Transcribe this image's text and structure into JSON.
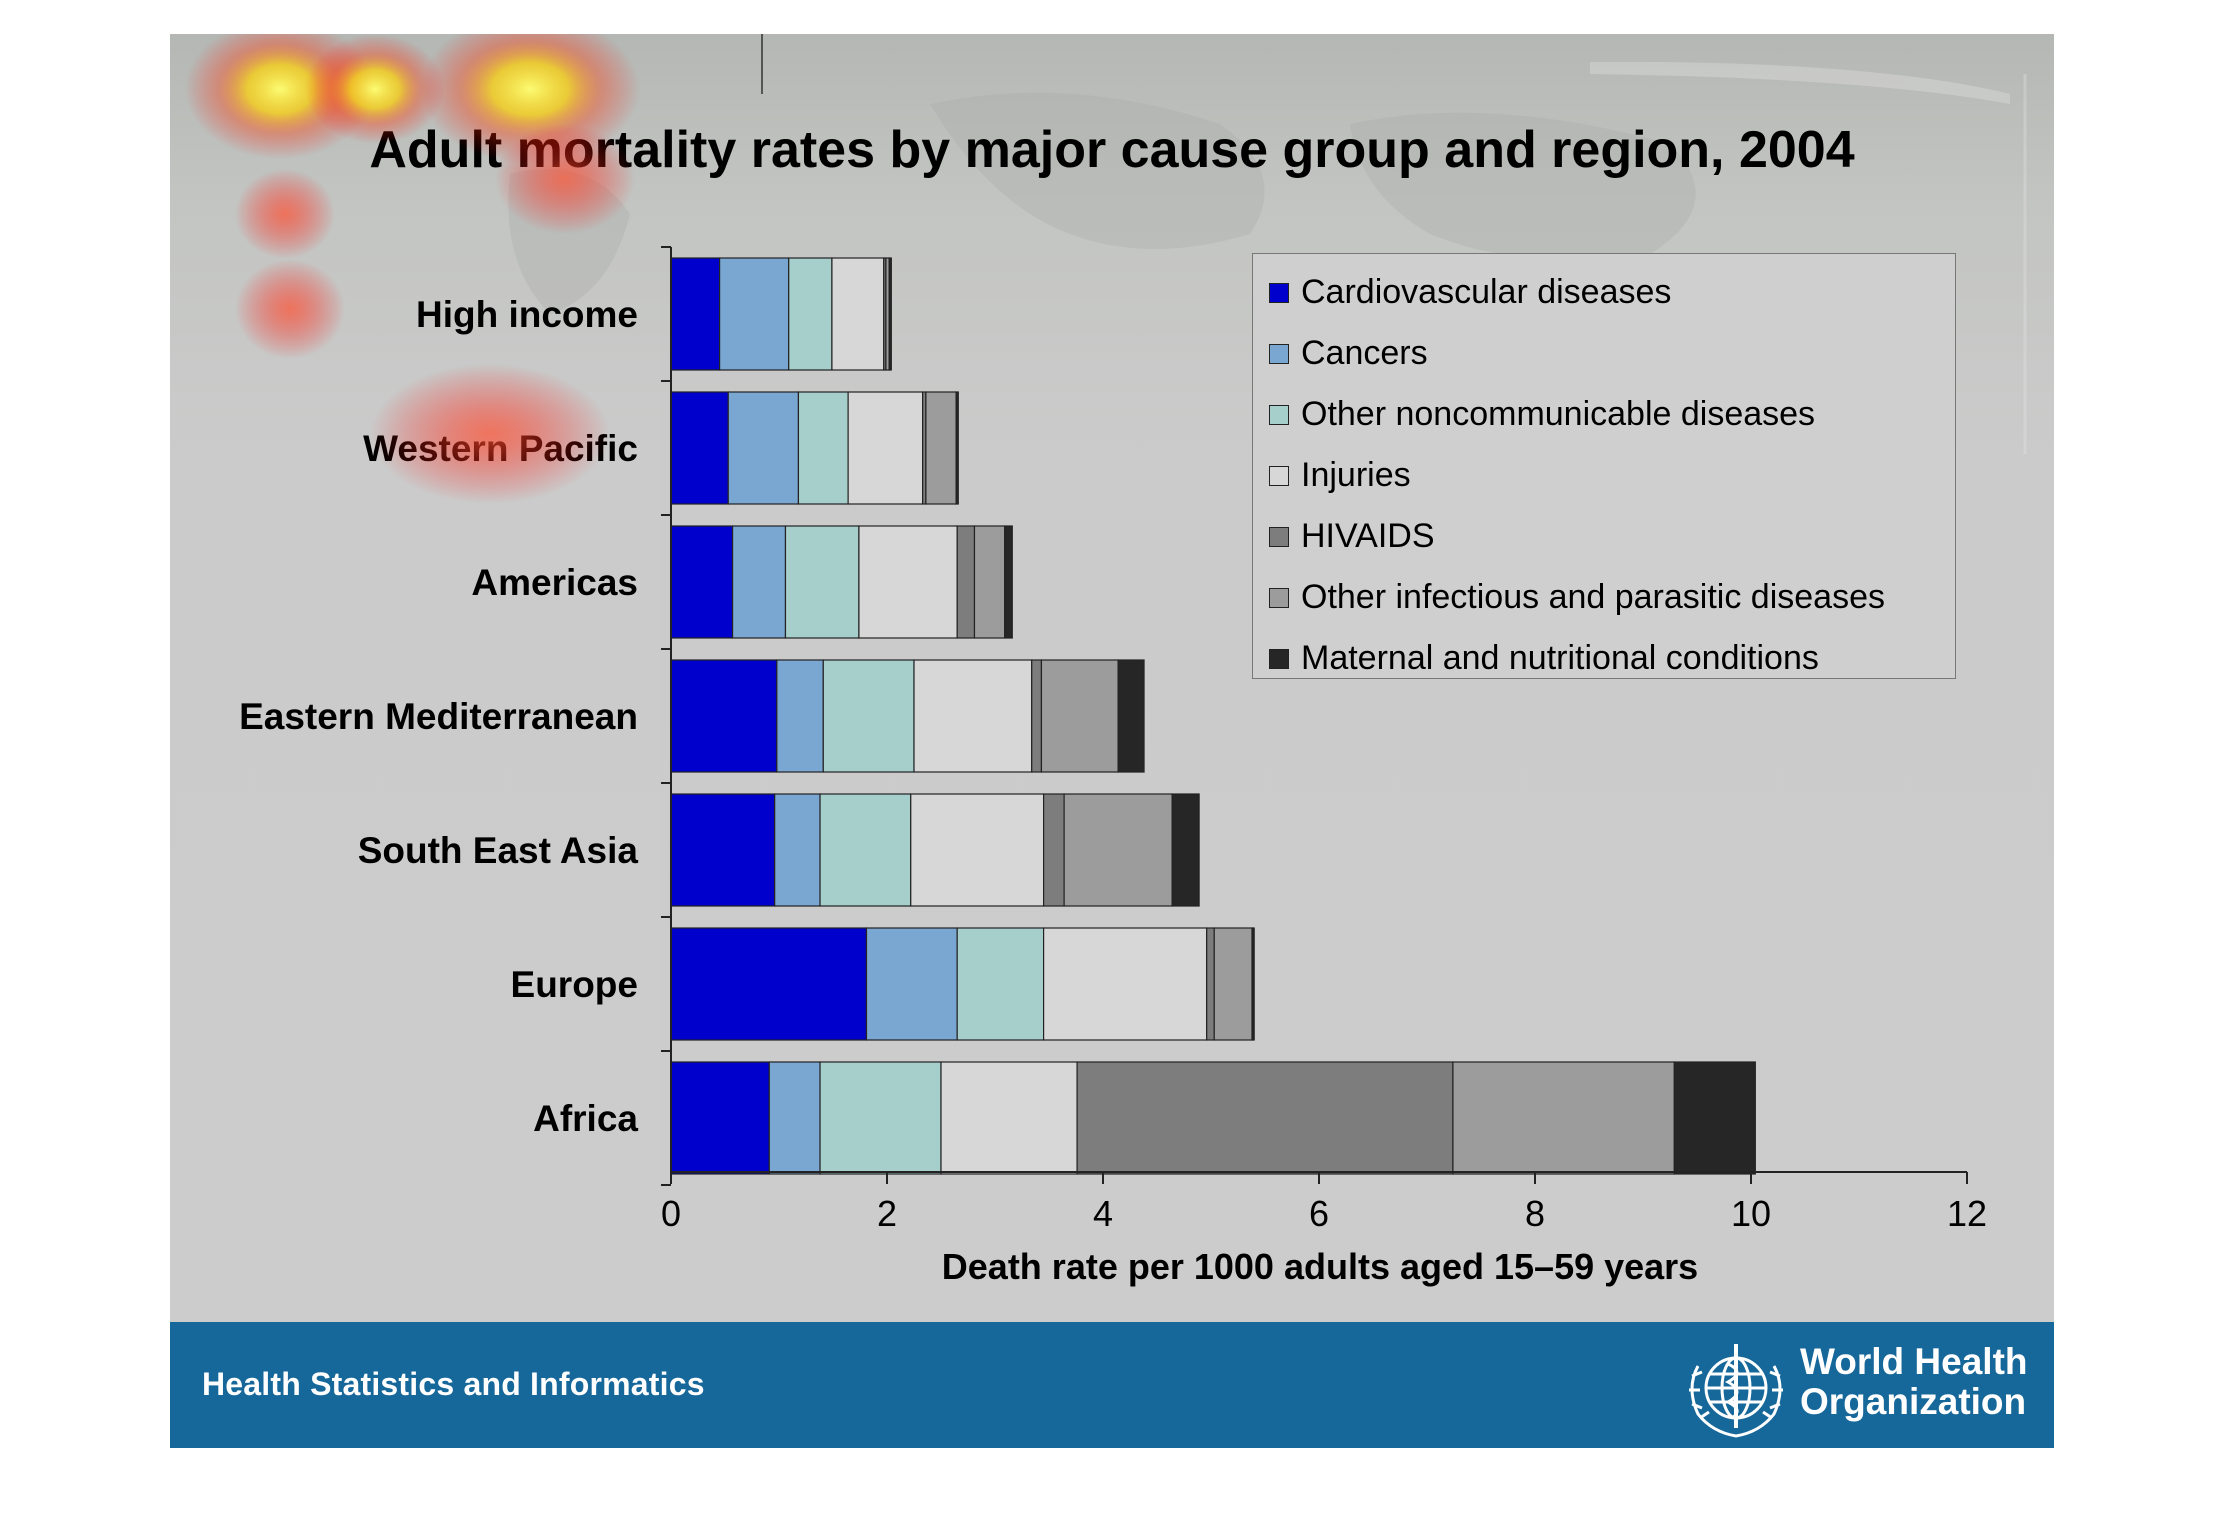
{
  "slide": {
    "footer_text": "Health Statistics and Informatics",
    "who_name_line1": "World Health",
    "who_name_line2": "Organization"
  },
  "colors": {
    "footer": "#17689a",
    "cardiovascular": "#0000cc",
    "cancers": "#7aa6d2",
    "other_ncd": "#a6cfcc",
    "injuries": "#d7d7d7",
    "hivaids": "#7d7d7d",
    "other_infectious": "#9c9c9c",
    "maternal": "#262626"
  },
  "chart_data": {
    "type": "bar",
    "orientation": "horizontal",
    "stacked": true,
    "title": "Adult mortality rates by major cause group and region, 2004",
    "xlabel": "Death rate per 1000 adults aged 15–59 years",
    "ylabel": "",
    "xlim": [
      0,
      12
    ],
    "xticks": [
      0,
      2,
      4,
      6,
      8,
      10,
      12
    ],
    "grid": false,
    "legend_position": "top-right",
    "categories": [
      "High income",
      "Western Pacific",
      "Americas",
      "Eastern Mediterranean",
      "South East Asia",
      "Europe",
      "Africa"
    ],
    "series": [
      {
        "name": "Cardiovascular diseases",
        "color": "#0000cc",
        "values": [
          0.45,
          0.53,
          0.57,
          0.98,
          0.96,
          1.81,
          0.91
        ]
      },
      {
        "name": "Cancers",
        "color": "#7aa6d2",
        "values": [
          0.64,
          0.65,
          0.49,
          0.43,
          0.42,
          0.84,
          0.47
        ]
      },
      {
        "name": "Other noncommunicable diseases",
        "color": "#a6cfcc",
        "values": [
          0.4,
          0.46,
          0.68,
          0.84,
          0.84,
          0.8,
          1.12
        ]
      },
      {
        "name": "Injuries",
        "color": "#d7d7d7",
        "values": [
          0.48,
          0.69,
          0.91,
          1.09,
          1.23,
          1.51,
          1.26
        ]
      },
      {
        "name": "HIVAIDS",
        "color": "#7d7d7d",
        "values": [
          0.02,
          0.03,
          0.16,
          0.09,
          0.19,
          0.07,
          3.48
        ]
      },
      {
        "name": "Other infectious and parasitic diseases",
        "color": "#9c9c9c",
        "values": [
          0.03,
          0.28,
          0.28,
          0.71,
          1.0,
          0.35,
          2.05
        ]
      },
      {
        "name": "Maternal and nutritional conditions",
        "color": "#262626",
        "values": [
          0.02,
          0.02,
          0.07,
          0.24,
          0.25,
          0.02,
          0.75
        ]
      }
    ]
  }
}
